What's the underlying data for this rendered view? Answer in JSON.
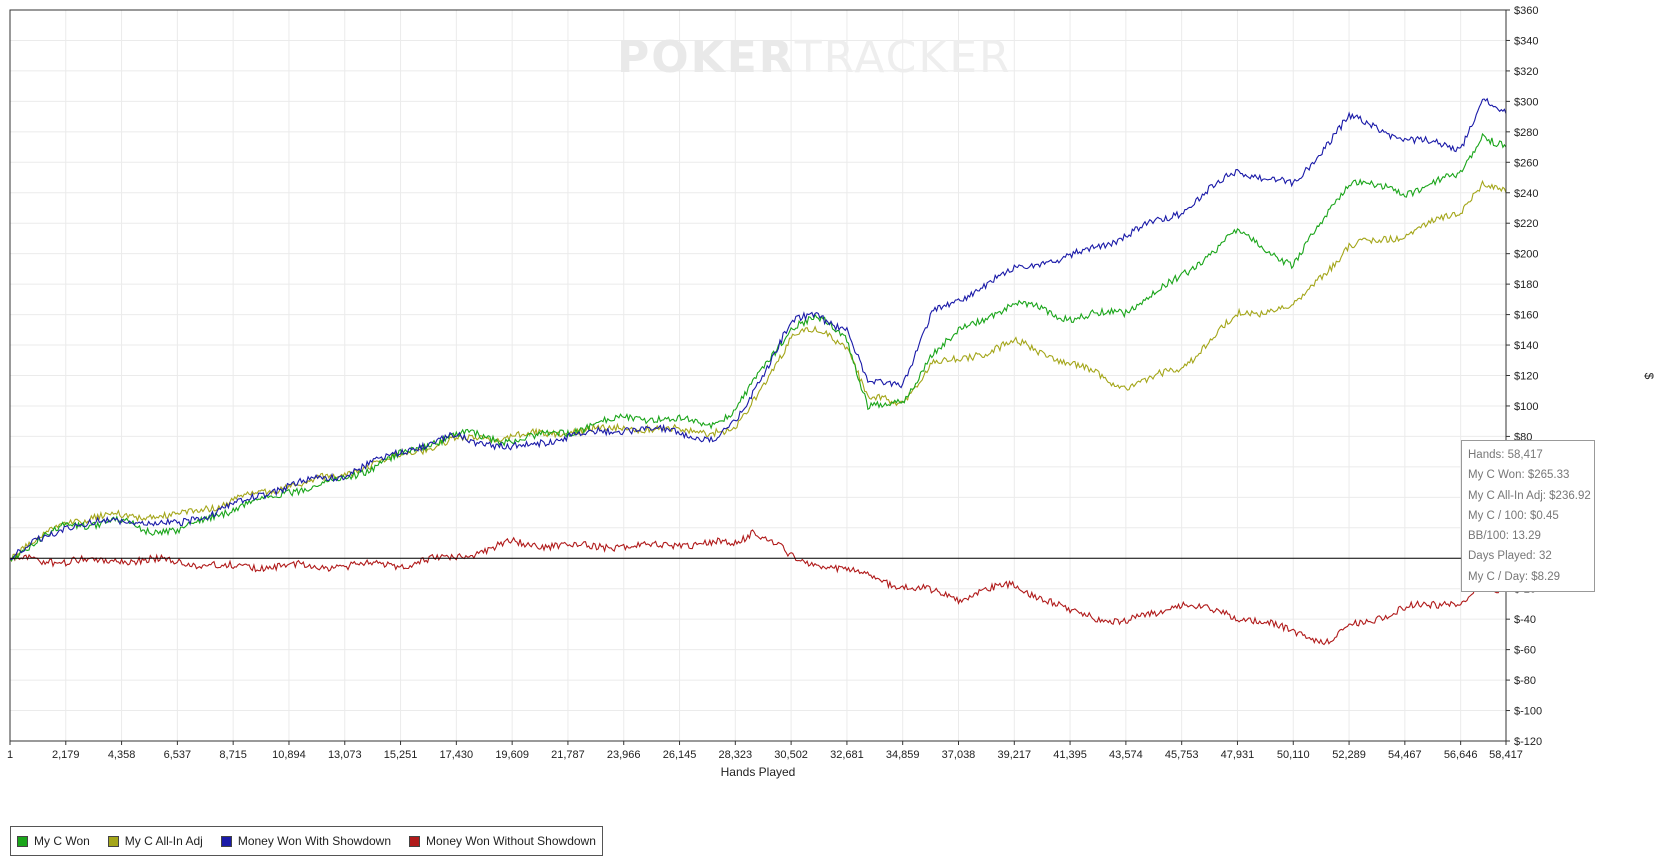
{
  "chart_data": {
    "type": "line",
    "watermark": {
      "left": "POKER",
      "right": "TRACKER"
    },
    "xlabel": "Hands Played",
    "ylabel": "$",
    "xlim": [
      1,
      58417
    ],
    "ylim": [
      -120,
      360
    ],
    "x_ticks": [
      1,
      2179,
      4358,
      6537,
      8715,
      10894,
      13073,
      15251,
      17430,
      19609,
      21787,
      23966,
      26145,
      28323,
      30502,
      32681,
      34859,
      37038,
      39217,
      41395,
      43574,
      45753,
      47931,
      50110,
      52289,
      54467,
      56646,
      58417
    ],
    "x_tick_labels": [
      "1",
      "2,179",
      "4,358",
      "6,537",
      "8,715",
      "10,894",
      "13,073",
      "15,251",
      "17,430",
      "19,609",
      "21,787",
      "23,966",
      "26,145",
      "28,323",
      "30,502",
      "32,681",
      "34,859",
      "37,038",
      "39,217",
      "41,395",
      "43,574",
      "45,753",
      "47,931",
      "50,110",
      "52,289",
      "54,467",
      "56,646",
      "58,417"
    ],
    "y_ticks": [
      360,
      340,
      320,
      300,
      280,
      260,
      240,
      220,
      200,
      180,
      160,
      140,
      120,
      100,
      80,
      60,
      40,
      20,
      0,
      -20,
      -40,
      -60,
      -80,
      -100,
      -120
    ],
    "y_tick_labels": [
      "$360",
      "$340",
      "$320",
      "$300",
      "$280",
      "$260",
      "$240",
      "$220",
      "$200",
      "$180",
      "$160",
      "$140",
      "$120",
      "$100",
      "$80",
      "$60",
      "$40",
      "$20",
      "$0",
      "$-20",
      "$-40",
      "$-60",
      "$-80",
      "$-100",
      "$-120"
    ],
    "grid": true,
    "legend_position": "bottom-left",
    "series": [
      {
        "name": "My C Won",
        "color": "#1aa51a",
        "x": [
          1,
          2179,
          4358,
          5500,
          6537,
          8715,
          10894,
          13073,
          15251,
          17430,
          19609,
          21787,
          23966,
          26145,
          27500,
          28323,
          30502,
          31500,
          32681,
          33500,
          34859,
          36000,
          37038,
          39217,
          41395,
          43574,
          45753,
          47931,
          50110,
          52289,
          54467,
          56646,
          57500,
          58417
        ],
        "y": [
          0,
          22,
          24,
          18,
          18,
          33,
          44,
          52,
          68,
          82,
          77,
          83,
          93,
          91,
          88,
          97,
          152,
          158,
          145,
          100,
          101,
          135,
          148,
          168,
          158,
          162,
          185,
          215,
          192,
          248,
          240,
          252,
          278,
          270
        ]
      },
      {
        "name": "My C All-In Adj",
        "color": "#a4a61a",
        "x": [
          1,
          2179,
          4358,
          6537,
          8715,
          10894,
          13073,
          15251,
          17430,
          19609,
          21787,
          23966,
          26145,
          28323,
          30502,
          31500,
          32681,
          33500,
          34859,
          36000,
          37038,
          39217,
          41395,
          43574,
          45753,
          47931,
          50110,
          52289,
          54467,
          56646,
          57500,
          58417
        ],
        "y": [
          0,
          25,
          28,
          28,
          38,
          48,
          55,
          68,
          78,
          80,
          83,
          86,
          84,
          83,
          145,
          150,
          140,
          105,
          102,
          128,
          130,
          142,
          128,
          112,
          125,
          160,
          165,
          205,
          212,
          228,
          247,
          240
        ]
      },
      {
        "name": "Money Won With Showdown",
        "color": "#1a1aa8",
        "x": [
          1,
          2179,
          4358,
          6537,
          8715,
          10894,
          13073,
          15251,
          17430,
          19609,
          21787,
          23966,
          26145,
          27500,
          28323,
          30502,
          31500,
          32681,
          33500,
          34859,
          36000,
          37038,
          39217,
          41395,
          43574,
          45753,
          47931,
          50110,
          52289,
          54467,
          56646,
          57500,
          58417
        ],
        "y": [
          0,
          22,
          24,
          22,
          35,
          48,
          55,
          70,
          80,
          72,
          80,
          85,
          83,
          78,
          88,
          155,
          160,
          150,
          115,
          115,
          160,
          170,
          190,
          198,
          212,
          228,
          255,
          245,
          290,
          275,
          270,
          300,
          292
        ]
      },
      {
        "name": "Money Won Without Showdown",
        "color": "#b01a1a",
        "x": [
          1,
          2179,
          4358,
          6537,
          8715,
          10894,
          13073,
          15251,
          17430,
          19609,
          21787,
          23966,
          26145,
          28323,
          29000,
          30000,
          30502,
          32681,
          34859,
          37038,
          39217,
          41395,
          43574,
          45753,
          47931,
          50110,
          51500,
          52289,
          54467,
          56646,
          57500,
          58417
        ],
        "y": [
          0,
          -2,
          -1,
          -2,
          -6,
          -5,
          -5,
          -4,
          1,
          10,
          8,
          8,
          9,
          10,
          18,
          8,
          0,
          -8,
          -18,
          -26,
          -17,
          -35,
          -42,
          -30,
          -38,
          -48,
          -55,
          -45,
          -33,
          -28,
          -20,
          -22
        ]
      }
    ]
  },
  "stats": [
    "Hands: 58,417",
    "My C Won: $265.33",
    "My C All-In Adj: $236.92",
    "My C / 100: $0.45",
    "BB/100: 13.29",
    "Days Played: 32",
    "My C / Day: $8.29"
  ]
}
